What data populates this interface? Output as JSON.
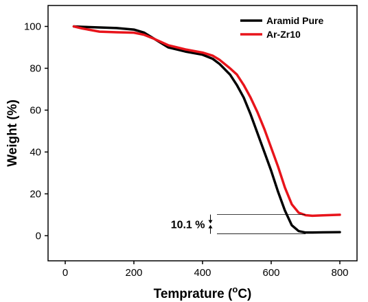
{
  "chart_data": {
    "type": "line",
    "xlabel_main": "Temprature (",
    "xlabel_sup": "o",
    "xlabel_end": "C)",
    "ylabel": "Weight (%)",
    "xlim": [
      -50,
      850
    ],
    "ylim": [
      -12,
      110
    ],
    "xticks": [
      0,
      200,
      400,
      600,
      800
    ],
    "yticks": [
      0,
      20,
      40,
      60,
      80,
      100
    ],
    "legend_position": "top-right",
    "series": [
      {
        "name": "Aramid Pure",
        "color": "#000000",
        "x": [
          25,
          50,
          100,
          150,
          200,
          230,
          260,
          300,
          350,
          400,
          430,
          450,
          480,
          500,
          520,
          540,
          560,
          580,
          600,
          620,
          640,
          660,
          680,
          700,
          720,
          750,
          800
        ],
        "y": [
          100,
          99.8,
          99.5,
          99.2,
          98.5,
          97,
          94,
          90,
          88,
          86.5,
          84.5,
          82,
          77,
          72,
          66,
          58,
          49,
          40,
          31,
          21,
          12,
          5,
          2.2,
          1.5,
          1.5,
          1.6,
          1.7
        ]
      },
      {
        "name": "Ar-Zr10",
        "color": "#e8141b",
        "x": [
          25,
          50,
          100,
          150,
          200,
          230,
          260,
          300,
          350,
          400,
          430,
          450,
          480,
          500,
          520,
          540,
          560,
          580,
          600,
          620,
          640,
          660,
          680,
          700,
          720,
          750,
          800
        ],
        "y": [
          100,
          99,
          97.5,
          97.2,
          97,
          96,
          94,
          91,
          89,
          87.5,
          86,
          84,
          80,
          77,
          72,
          66,
          59,
          51,
          42,
          33,
          23,
          15,
          11,
          9.8,
          9.5,
          9.7,
          10
        ]
      }
    ],
    "annotation": {
      "text": "10.1 %",
      "y_top": 10.1,
      "y_bottom": 0.9,
      "x_from": 442,
      "x_to": 700,
      "x_arrow": 423
    }
  }
}
